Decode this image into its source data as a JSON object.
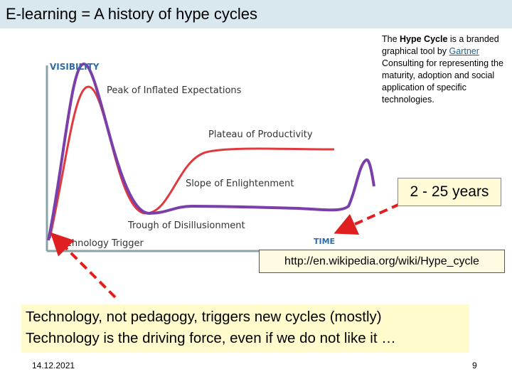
{
  "header": {
    "title": "E-learning = A history of hype cycles"
  },
  "diagram": {
    "y_axis": "VISIBILITY",
    "x_axis": "TIME",
    "phases": [
      "Peak of Inflated Expectations",
      "Plateau of Productivity",
      "Slope of Enlightenment",
      "Trough of Disillusionment",
      "Technology Trigger"
    ]
  },
  "sidebar": {
    "parts": [
      "The ",
      "Hype Cycle",
      " is a branded graphical tool by ",
      "Gartner",
      " Consulting for representing the maturity, adoption and social application of specific technologies."
    ]
  },
  "callout": "2 - 25 years",
  "link": "http://en.wikipedia.org/wiki/Hype_cycle",
  "note": {
    "lines": [
      "Technology, not pedagogy, triggers new cycles (mostly)",
      "Technology is the driving force, even if we do not like it …"
    ]
  },
  "footer": {
    "date": "14.12.2021",
    "page": "9"
  }
}
